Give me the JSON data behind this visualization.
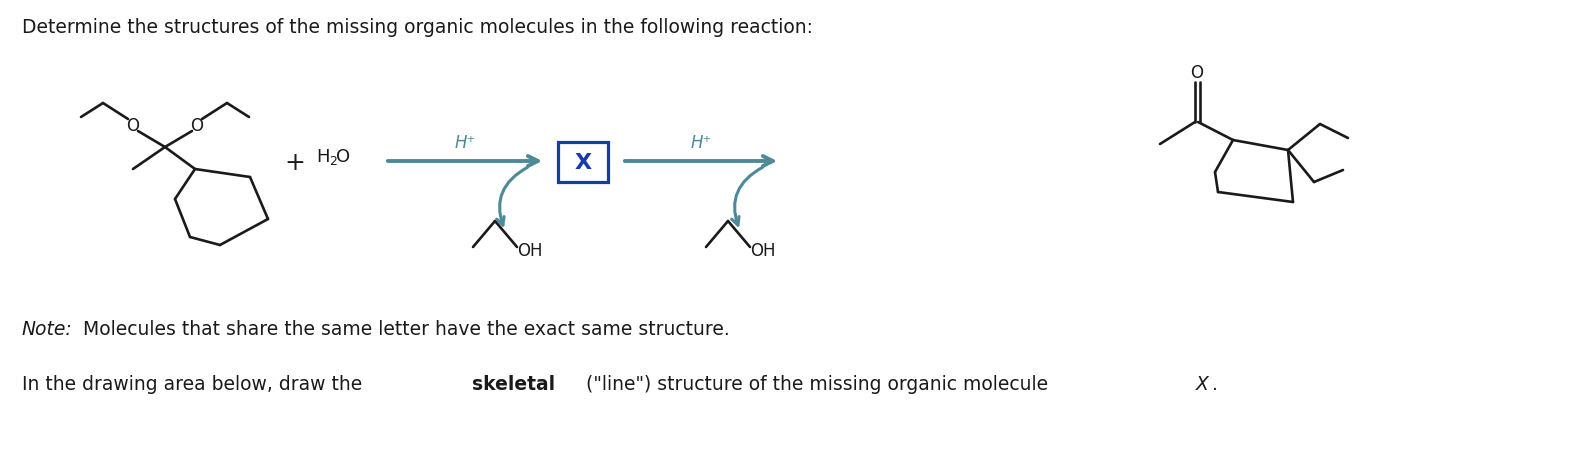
{
  "bg_color": "#ffffff",
  "line_color": "#1a1a1a",
  "arrow_color": "#4d8a97",
  "box_color": "#1a3aaa",
  "title": "Determine the structures of the missing organic molecules in the following reaction:",
  "note_label": "Note:",
  "note_body": " Molecules that share the same letter have the exact same structure.",
  "instr_pre": "In the drawing area below, draw the ",
  "instr_bold": "skeletal",
  "instr_post": " (\"line\") structure of the missing organic molecule ",
  "lw": 1.9
}
